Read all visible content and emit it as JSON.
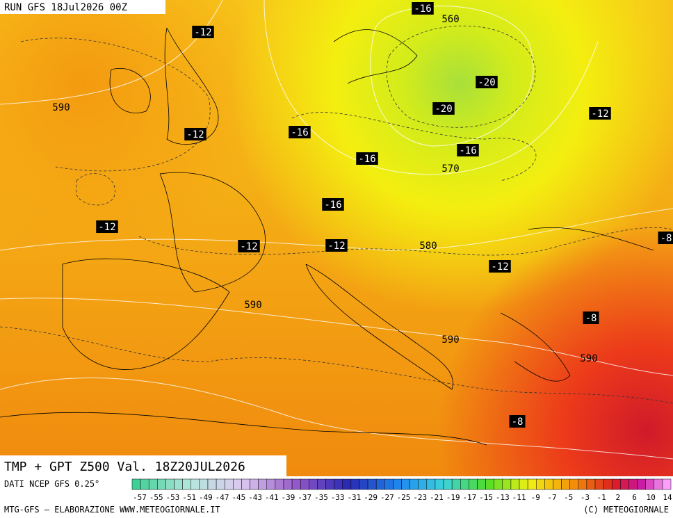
{
  "header": {
    "run": "RUN GFS 18Jul2026 00Z"
  },
  "map": {
    "labels": [
      "-16",
      "560",
      "-12",
      "-20",
      "590",
      "-20",
      "-12",
      "-12",
      "-16",
      "-16",
      "-16",
      "570",
      "-16",
      "-12",
      "-12",
      "-12",
      "580",
      "-8",
      "-12",
      "590",
      "-8",
      "590",
      "590",
      "-8"
    ]
  },
  "footer": {
    "title": "TMP + GPT Z500 Val. 18Z20JUL2026",
    "source": "DATI NCEP GFS 0.25°",
    "credit": "MTG-GFS — ELABORAZIONE WWW.METEOGIORNALE.IT",
    "copyright": "(C) METEOGIORNALE"
  },
  "colorbar": {
    "labels": [
      "-57",
      "-55",
      "-53",
      "-51",
      "-49",
      "-47",
      "-45",
      "-43",
      "-41",
      "-39",
      "-37",
      "-35",
      "-33",
      "-31",
      "-29",
      "-27",
      "-25",
      "-23",
      "-21",
      "-19",
      "-17",
      "-15",
      "-13",
      "-11",
      "-9",
      "-7",
      "-5",
      "-3",
      "-1",
      "2",
      "6",
      "10",
      "14"
    ]
  }
}
